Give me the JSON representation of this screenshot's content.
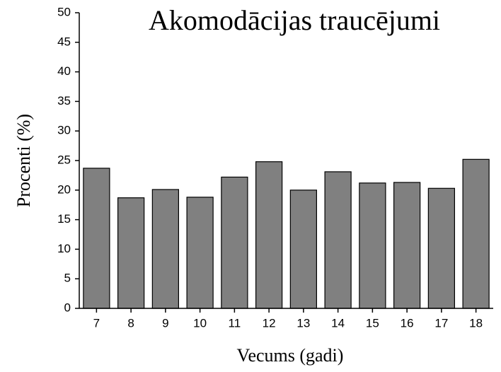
{
  "chart_data": {
    "type": "bar",
    "title": "Akomodācijas traucējumi",
    "xlabel": "Vecums (gadi)",
    "ylabel": "Procenti (%)",
    "categories": [
      "7",
      "8",
      "9",
      "10",
      "11",
      "12",
      "13",
      "14",
      "15",
      "16",
      "17",
      "18"
    ],
    "values": [
      23.7,
      18.7,
      20.1,
      18.8,
      22.2,
      24.8,
      20.0,
      23.1,
      21.2,
      21.3,
      20.3,
      25.2
    ],
    "color": "#808080",
    "ylim": [
      0,
      50
    ],
    "yticks": [
      0,
      5,
      10,
      15,
      20,
      25,
      30,
      35,
      40,
      45,
      50
    ],
    "grid": false
  }
}
